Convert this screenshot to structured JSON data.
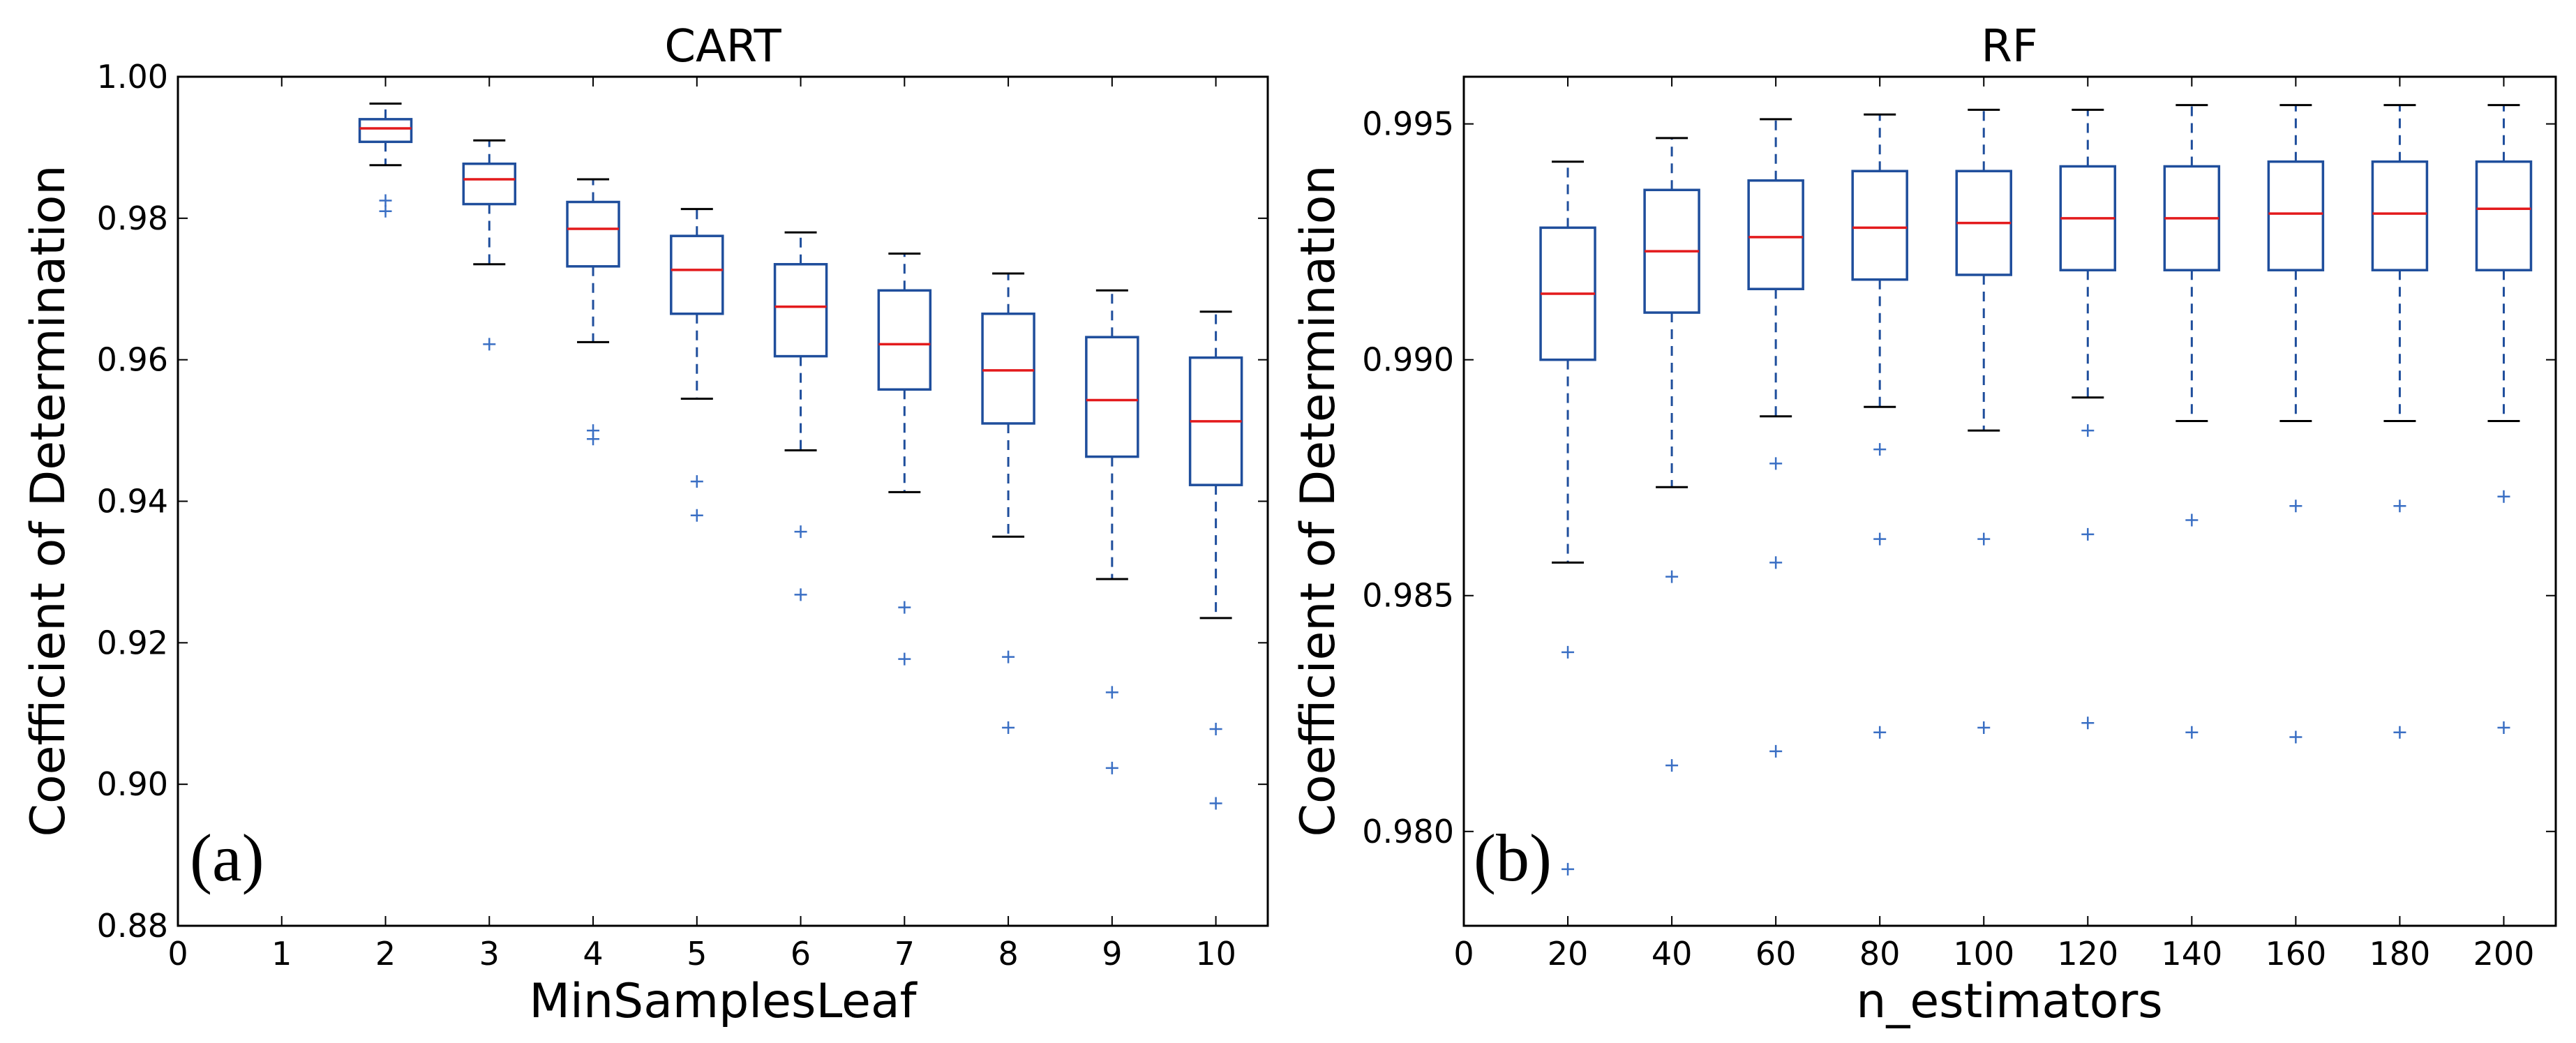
{
  "colors": {
    "box": "#1f4e9c",
    "median": "#e31a1c",
    "outlier": "#3a6fc4",
    "axis": "#000000"
  },
  "chart_data": [
    {
      "type": "box",
      "title": "CART",
      "xlabel": "MinSamplesLeaf",
      "ylabel": "Coefficient of Determination",
      "panel_label": "(a)",
      "xlim": [
        0,
        10.5
      ],
      "ylim": [
        0.88,
        1.0
      ],
      "xticks": [
        0,
        1,
        2,
        3,
        4,
        5,
        6,
        7,
        8,
        9,
        10
      ],
      "xtick_labels": [
        "0",
        "1",
        "2",
        "3",
        "4",
        "5",
        "6",
        "7",
        "8",
        "9",
        "10"
      ],
      "yticks": [
        0.88,
        0.9,
        0.92,
        0.94,
        0.96,
        0.98,
        1.0
      ],
      "ytick_labels": [
        "0.88",
        "0.90",
        "0.92",
        "0.94",
        "0.96",
        "0.98",
        "1.00"
      ],
      "boxes": [
        {
          "x": 2,
          "whislo": 0.9875,
          "q1": 0.9908,
          "med": 0.9927,
          "q3": 0.994,
          "whishi": 0.9962,
          "fliers": [
            0.9825,
            0.981
          ]
        },
        {
          "x": 3,
          "whislo": 0.9735,
          "q1": 0.982,
          "med": 0.9855,
          "q3": 0.9877,
          "whishi": 0.991,
          "fliers": [
            0.9622
          ]
        },
        {
          "x": 4,
          "whislo": 0.9625,
          "q1": 0.9732,
          "med": 0.9785,
          "q3": 0.9823,
          "whishi": 0.9855,
          "fliers": [
            0.95,
            0.9488
          ]
        },
        {
          "x": 5,
          "whislo": 0.9545,
          "q1": 0.9665,
          "med": 0.9727,
          "q3": 0.9775,
          "whishi": 0.9813,
          "fliers": [
            0.9428,
            0.938
          ]
        },
        {
          "x": 6,
          "whislo": 0.9472,
          "q1": 0.9605,
          "med": 0.9675,
          "q3": 0.9735,
          "whishi": 0.978,
          "fliers": [
            0.9357,
            0.9268
          ]
        },
        {
          "x": 7,
          "whislo": 0.9413,
          "q1": 0.9558,
          "med": 0.9622,
          "q3": 0.9698,
          "whishi": 0.975,
          "fliers": [
            0.925,
            0.9177
          ]
        },
        {
          "x": 8,
          "whislo": 0.935,
          "q1": 0.951,
          "med": 0.9585,
          "q3": 0.9665,
          "whishi": 0.9722,
          "fliers": [
            0.918,
            0.908
          ]
        },
        {
          "x": 9,
          "whislo": 0.929,
          "q1": 0.9463,
          "med": 0.9543,
          "q3": 0.9632,
          "whishi": 0.9698,
          "fliers": [
            0.913,
            0.9023
          ]
        },
        {
          "x": 10,
          "whislo": 0.9235,
          "q1": 0.9423,
          "med": 0.9513,
          "q3": 0.9603,
          "whishi": 0.9668,
          "fliers": [
            0.9078,
            0.8973
          ]
        }
      ]
    },
    {
      "type": "box",
      "title": "RF",
      "xlabel": "n_estimators",
      "ylabel": "Coefficient of Determination",
      "panel_label": "(b)",
      "xlim": [
        0,
        210
      ],
      "ylim": [
        0.978,
        0.996
      ],
      "xticks": [
        0,
        20,
        40,
        60,
        80,
        100,
        120,
        140,
        160,
        180,
        200
      ],
      "xtick_labels": [
        "0",
        "20",
        "40",
        "60",
        "80",
        "100",
        "120",
        "140",
        "160",
        "180",
        "200"
      ],
      "yticks": [
        0.98,
        0.985,
        0.99,
        0.995
      ],
      "ytick_labels": [
        "0.980",
        "0.985",
        "0.990",
        "0.995"
      ],
      "boxes": [
        {
          "x": 20,
          "whislo": 0.9857,
          "q1": 0.99,
          "med": 0.9914,
          "q3": 0.9928,
          "whishi": 0.9942,
          "fliers": [
            0.9838,
            0.9792
          ]
        },
        {
          "x": 40,
          "whislo": 0.9873,
          "q1": 0.991,
          "med": 0.9923,
          "q3": 0.9936,
          "whishi": 0.9947,
          "fliers": [
            0.9854,
            0.9814
          ]
        },
        {
          "x": 60,
          "whislo": 0.9888,
          "q1": 0.9915,
          "med": 0.9926,
          "q3": 0.9938,
          "whishi": 0.9951,
          "fliers": [
            0.9878,
            0.9857,
            0.9817
          ]
        },
        {
          "x": 80,
          "whislo": 0.989,
          "q1": 0.9917,
          "med": 0.9928,
          "q3": 0.994,
          "whishi": 0.9952,
          "fliers": [
            0.9881,
            0.9862,
            0.9821
          ]
        },
        {
          "x": 100,
          "whislo": 0.9885,
          "q1": 0.9918,
          "med": 0.9929,
          "q3": 0.994,
          "whishi": 0.9953,
          "fliers": [
            0.9862,
            0.9822
          ]
        },
        {
          "x": 120,
          "whislo": 0.9892,
          "q1": 0.9919,
          "med": 0.993,
          "q3": 0.9941,
          "whishi": 0.9953,
          "fliers": [
            0.9885,
            0.9863,
            0.9823
          ]
        },
        {
          "x": 140,
          "whislo": 0.9887,
          "q1": 0.9919,
          "med": 0.993,
          "q3": 0.9941,
          "whishi": 0.9954,
          "fliers": [
            0.9866,
            0.9821
          ]
        },
        {
          "x": 160,
          "whislo": 0.9887,
          "q1": 0.9919,
          "med": 0.9931,
          "q3": 0.9942,
          "whishi": 0.9954,
          "fliers": [
            0.9869,
            0.982
          ]
        },
        {
          "x": 180,
          "whislo": 0.9887,
          "q1": 0.9919,
          "med": 0.9931,
          "q3": 0.9942,
          "whishi": 0.9954,
          "fliers": [
            0.9869,
            0.9821
          ]
        },
        {
          "x": 200,
          "whislo": 0.9887,
          "q1": 0.9919,
          "med": 0.9932,
          "q3": 0.9942,
          "whishi": 0.9954,
          "fliers": [
            0.9871,
            0.9822
          ]
        }
      ]
    }
  ]
}
